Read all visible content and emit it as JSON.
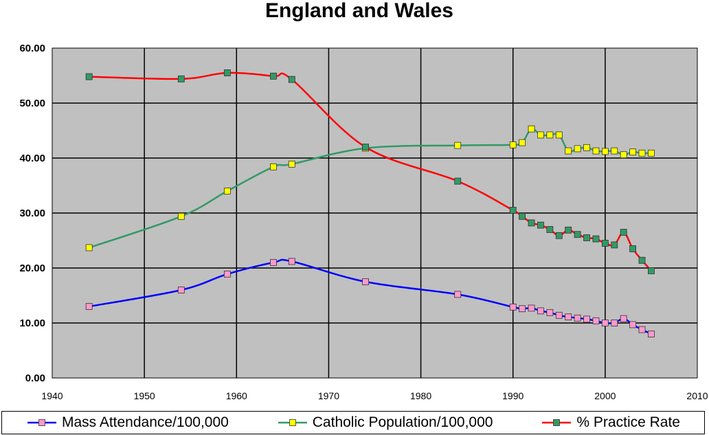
{
  "chart_data": {
    "type": "line",
    "title": "England and Wales",
    "xlabel": "",
    "ylabel": "",
    "xlim": [
      1940,
      2010
    ],
    "ylim": [
      0,
      60
    ],
    "x_ticks": [
      "1940",
      "1950",
      "1960",
      "1970",
      "1980",
      "1990",
      "2000",
      "2010"
    ],
    "y_ticks": [
      "0.00",
      "10.00",
      "20.00",
      "30.00",
      "40.00",
      "50.00",
      "60.00"
    ],
    "grid": true,
    "legend_position": "bottom",
    "plot_background": "#c0c0c0",
    "series": [
      {
        "name": "Mass Attendance/100,000",
        "line_color": "#0000ff",
        "marker_color": "#ff99cc",
        "x": [
          1944,
          1954,
          1959,
          1964,
          1966,
          1974,
          1984,
          1990,
          1991,
          1992,
          1993,
          1994,
          1995,
          1996,
          1997,
          1998,
          1999,
          2000,
          2001,
          2002,
          2003,
          2004,
          2005
        ],
        "y": [
          13.0,
          16.0,
          18.9,
          21.0,
          21.2,
          17.5,
          15.2,
          12.9,
          12.6,
          12.7,
          12.2,
          11.9,
          11.4,
          11.1,
          10.9,
          10.7,
          10.4,
          10.0,
          10.0,
          10.8,
          9.7,
          8.8,
          8.0
        ]
      },
      {
        "name": "Catholic Population/100,000",
        "line_color": "#339966",
        "marker_color": "#ffff00",
        "x": [
          1944,
          1954,
          1959,
          1964,
          1966,
          1974,
          1984,
          1990,
          1991,
          1992,
          1993,
          1994,
          1995,
          1996,
          1997,
          1998,
          1999,
          2000,
          2001,
          2002,
          2003,
          2004,
          2005
        ],
        "y": [
          23.7,
          29.4,
          34.0,
          38.4,
          38.9,
          41.8,
          42.3,
          42.4,
          42.8,
          45.3,
          44.2,
          44.2,
          44.2,
          41.3,
          41.7,
          41.9,
          41.3,
          41.2,
          41.3,
          40.6,
          41.1,
          40.9,
          40.9
        ]
      },
      {
        "name": "% Practice Rate",
        "line_color": "#ff0000",
        "marker_color": "#339966",
        "x": [
          1944,
          1954,
          1959,
          1964,
          1966,
          1974,
          1984,
          1990,
          1991,
          1992,
          1993,
          1994,
          1995,
          1996,
          1997,
          1998,
          1999,
          2000,
          2001,
          2002,
          2003,
          2004,
          2005
        ],
        "y": [
          54.8,
          54.4,
          55.5,
          54.9,
          54.3,
          42.0,
          35.8,
          30.5,
          29.4,
          28.2,
          27.8,
          27.0,
          25.9,
          26.9,
          26.1,
          25.5,
          25.3,
          24.5,
          24.2,
          26.5,
          23.5,
          21.4,
          19.5
        ]
      }
    ]
  }
}
